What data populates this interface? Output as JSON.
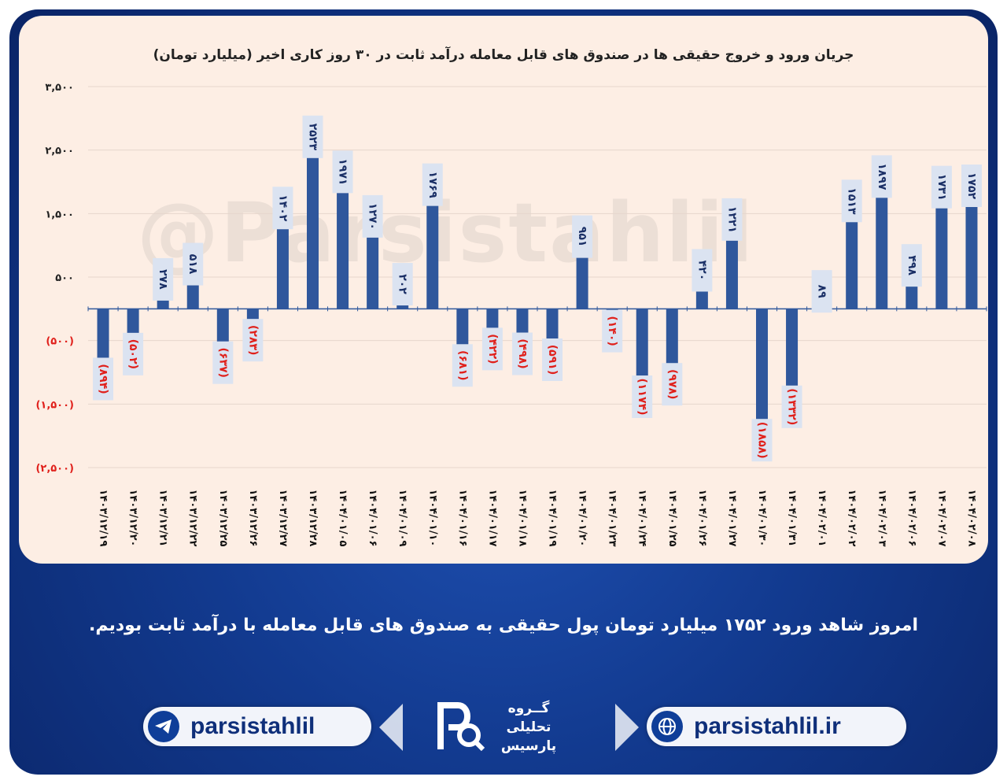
{
  "chart_data": {
    "type": "bar",
    "title": "جریان ورود و خروج حقیقی ها در صندوق های قابل معامله درآمد ثابت در ۳۰ روز کاری اخیر (میلیارد تومان)",
    "xlabel": "",
    "ylabel": "",
    "ylim": [
      -2500,
      3500
    ],
    "yticks": [
      3500,
      2500,
      1500,
      500,
      -500,
      -1500,
      -2500
    ],
    "ytick_labels": [
      "۳,۵۰۰",
      "۲,۵۰۰",
      "۱,۵۰۰",
      "۵۰۰",
      "(۵۰۰)",
      "(۱,۵۰۰)",
      "(۲,۵۰۰)"
    ],
    "grid": true,
    "categories": [
      "۱۴۰۳/۱۲/۱۹",
      "۱۴۰۳/۱۲/۲۰",
      "۱۴۰۳/۱۲/۲۱",
      "۱۴۰۳/۱۲/۲۲",
      "۱۴۰۳/۱۲/۲۵",
      "۱۴۰۳/۱۲/۲۶",
      "۱۴۰۳/۱۲/۲۷",
      "۱۴۰۳/۱۲/۲۸",
      "۱۴۰۴/۰۱/۰۵",
      "۱۴۰۴/۰۱/۰۶",
      "۱۴۰۴/۰۱/۰۹",
      "۱۴۰۴/۰۱/۱۰",
      "۱۴۰۴/۰۱/۱۶",
      "۱۴۰۴/۰۱/۱۷",
      "۱۴۰۴/۰۱/۱۸",
      "۱۴۰۴/۰۱/۱۹",
      "۱۴۰۴/۰۱/۲۰",
      "۱۴۰۴/۰۱/۲۳",
      "۱۴۰۴/۰۱/۲۴",
      "۱۴۰۴/۰۱/۲۵",
      "۱۴۰۴/۰۱/۲۶",
      "۱۴۰۴/۰۱/۲۷",
      "۱۴۰۴/۰۱/۳۰",
      "۱۴۰۴/۰۱/۳۱",
      "۱۴۰۴/۰۲/۰۱",
      "۱۴۰۴/۰۲/۰۲",
      "۱۴۰۴/۰۲/۰۳",
      "۱۴۰۴/۰۲/۰۶",
      "۱۴۰۴/۰۲/۰۷",
      "۱۴۰۴/۰۲/۰۸"
    ],
    "values": [
      -894,
      -502,
      278,
      518,
      -637,
      -283,
      1402,
      2523,
      1971,
      1270,
      202,
      1769,
      -681,
      -422,
      -498,
      -591,
      951,
      -140,
      -1174,
      -978,
      420,
      1221,
      -1858,
      -1332,
      89,
      1513,
      1897,
      498,
      1731,
      1752
    ],
    "labels": [
      "(۸۹۴)",
      "(۵۰۲)",
      "۲۷۸",
      "۵۱۸",
      "(۶۳۷)",
      "(۲۸۳)",
      "۱۴۰۲",
      "۲۵۲۳",
      "۱۹۷۱",
      "۱۲۷۰",
      "۲۰۲",
      "۱۷۶۹",
      "(۶۸۱)",
      "(۴۲۲)",
      "(۴۹۸)",
      "(۵۹۱)",
      "۹۵۱",
      "(۱۴۰)",
      "(۱۱۷۴)",
      "(۹۷۸)",
      "۴۲۰",
      "۱۲۲۱",
      "(۱۸۵۸)",
      "(۱۳۳۲)",
      "۸۹",
      "۱۵۱۳",
      "۱۸۹۷",
      "۴۹۸",
      "۱۷۳۱",
      "۱۷۵۲"
    ]
  },
  "watermark": "@Parsistahlil",
  "summary_text": "امروز شاهد ورود ۱۷۵۲ میلیارد تومان پول حقیقی به صندوق های قابل معامله با درآمد ثابت بودیم.",
  "footer": {
    "telegram_handle": "parsistahlil",
    "website": "parsistahlil.ir",
    "logo_lines": [
      "گــروه",
      "تحلیلی",
      "پارسیس"
    ]
  },
  "colors": {
    "bar": "#2f579c",
    "negative_label": "#e0201b",
    "positive_label": "#1a2f66",
    "label_box": "#dbe3f1"
  }
}
